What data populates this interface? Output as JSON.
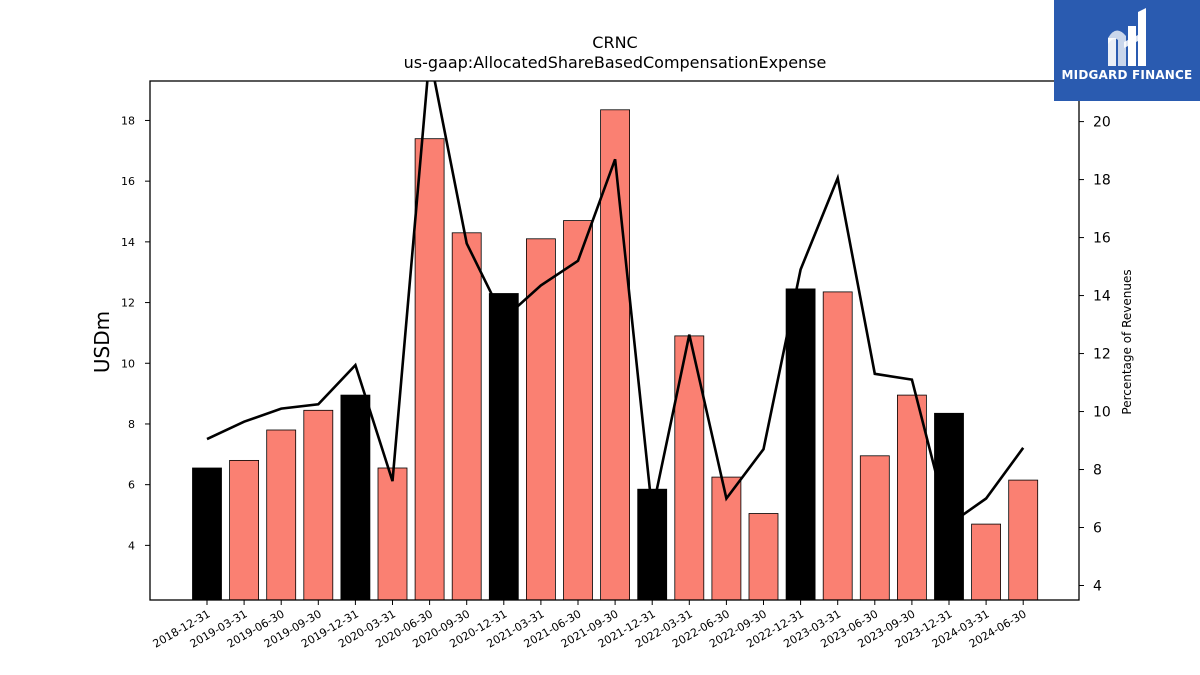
{
  "chart_data": {
    "type": "bar",
    "title": "CRNC",
    "subtitle": "us-gaap:AllocatedShareBasedCompensationExpense",
    "ylabel": "USDm",
    "y2label": "Percentage of Revenues",
    "ylim": [
      2.2,
      19.3
    ],
    "y2lim": [
      3.5,
      21.4
    ],
    "yticks": [
      4,
      6,
      8,
      10,
      12,
      14,
      16,
      18
    ],
    "y2ticks": [
      4,
      6,
      8,
      10,
      12,
      14,
      16,
      18,
      20
    ],
    "categories": [
      "2018-12-31",
      "2019-03-31",
      "2019-06-30",
      "2019-09-30",
      "2019-12-31",
      "2020-03-31",
      "2020-06-30",
      "2020-09-30",
      "2020-12-31",
      "2021-03-31",
      "2021-06-30",
      "2021-09-30",
      "2021-12-31",
      "2022-03-31",
      "2022-06-30",
      "2022-09-30",
      "2022-12-31",
      "2023-03-31",
      "2023-06-30",
      "2023-09-30",
      "2023-12-31",
      "2024-03-31",
      "2024-06-30"
    ],
    "series": [
      {
        "type": "bar",
        "axis": "left",
        "values": [
          6.55,
          6.8,
          7.8,
          8.45,
          8.95,
          6.55,
          17.4,
          14.3,
          12.3,
          14.1,
          14.7,
          18.35,
          5.85,
          10.9,
          6.25,
          5.05,
          12.45,
          12.35,
          6.95,
          8.95,
          8.35,
          4.7,
          6.15
        ],
        "colors": [
          "#000000",
          "#fa8072",
          "#fa8072",
          "#fa8072",
          "#000000",
          "#fa8072",
          "#fa8072",
          "#fa8072",
          "#000000",
          "#fa8072",
          "#fa8072",
          "#fa8072",
          "#000000",
          "#fa8072",
          "#fa8072",
          "#fa8072",
          "#000000",
          "#fa8072",
          "#fa8072",
          "#fa8072",
          "#000000",
          "#fa8072",
          "#fa8072"
        ]
      },
      {
        "type": "line",
        "axis": "right",
        "color": "#000000",
        "values": [
          9.05,
          9.65,
          10.1,
          10.25,
          11.6,
          7.6,
          22.3,
          15.8,
          13.2,
          14.35,
          15.2,
          18.7,
          6.55,
          12.65,
          7.0,
          8.7,
          14.9,
          18.05,
          11.3,
          11.1,
          6.1,
          7.0,
          8.75
        ]
      }
    ],
    "grid": false,
    "legend": "none"
  },
  "logo": {
    "text": "MIDGARD FINANCE",
    "color": "#2a5bb0"
  }
}
